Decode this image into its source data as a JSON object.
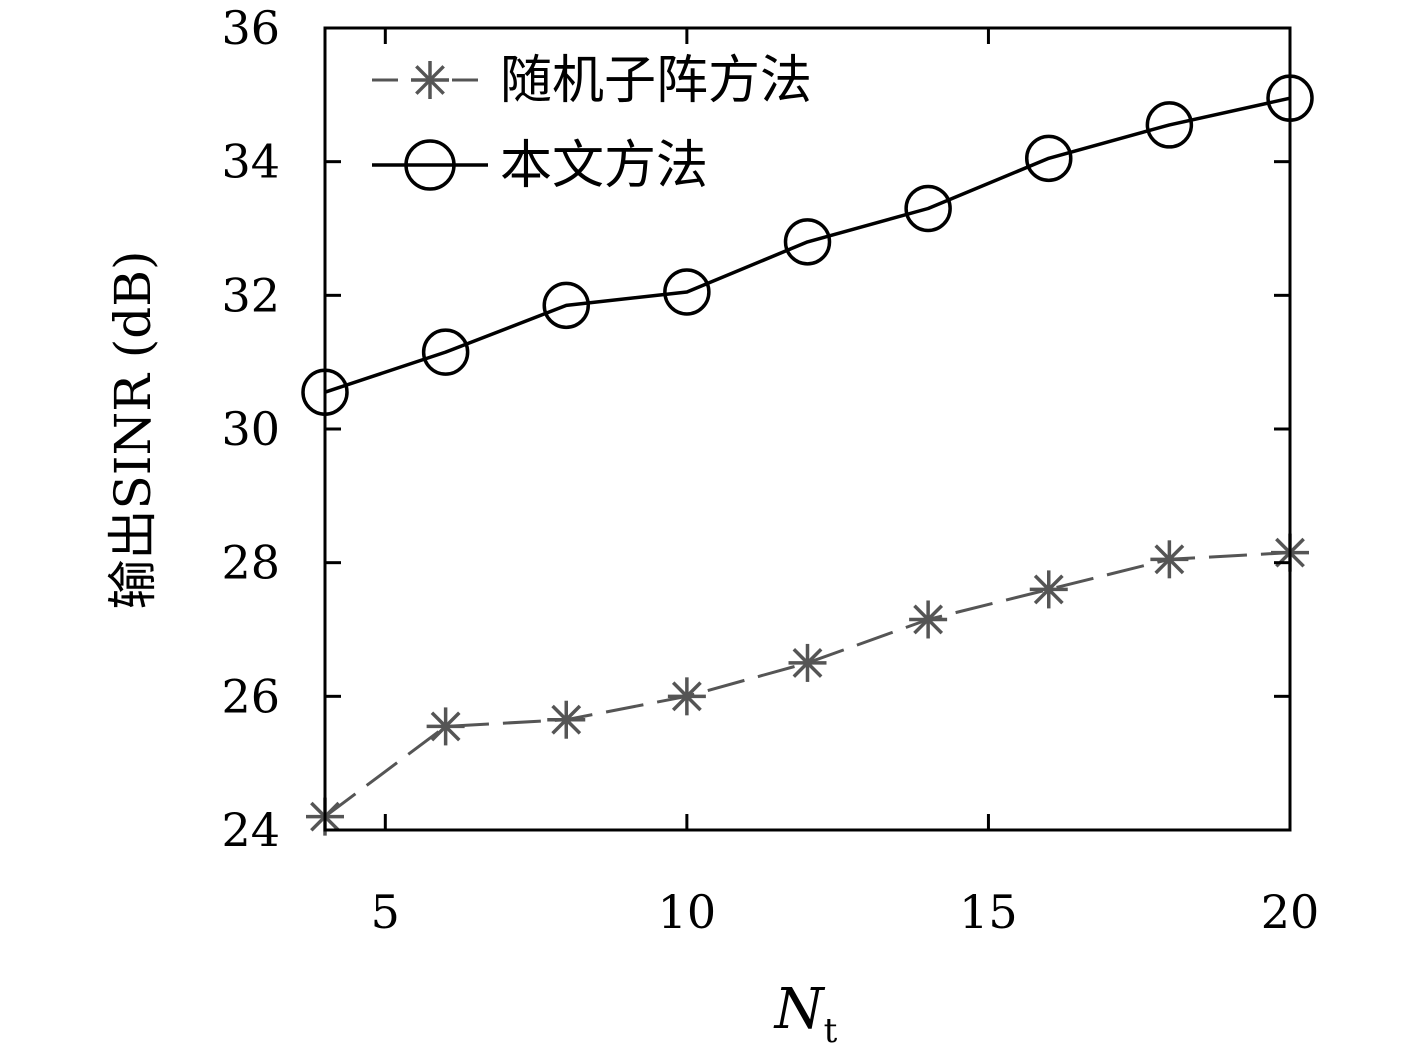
{
  "chart_data": {
    "type": "line",
    "xlabel_main": "N",
    "xlabel_sub": "t",
    "ylabel": "输出SINR (dB)",
    "xlim": [
      4,
      20
    ],
    "ylim": [
      24,
      36
    ],
    "xticks": [
      5,
      10,
      15,
      20
    ],
    "yticks": [
      24,
      26,
      28,
      30,
      32,
      34,
      36
    ],
    "grid": false,
    "legend_position": "top-left",
    "series": [
      {
        "name": "随机子阵方法",
        "x": [
          4,
          6,
          8,
          10,
          12,
          14,
          16,
          18,
          20
        ],
        "values": [
          24.2,
          25.55,
          25.65,
          26.0,
          26.5,
          27.15,
          27.6,
          28.05,
          28.15
        ],
        "color": "#555555",
        "marker": "asterisk",
        "line_style": "dashed"
      },
      {
        "name": "本文方法",
        "x": [
          4,
          6,
          8,
          10,
          12,
          14,
          16,
          18,
          20
        ],
        "values": [
          30.55,
          31.15,
          31.85,
          32.05,
          32.8,
          33.3,
          34.05,
          34.55,
          34.95
        ],
        "color": "#000000",
        "marker": "circle",
        "line_style": "solid"
      }
    ]
  }
}
